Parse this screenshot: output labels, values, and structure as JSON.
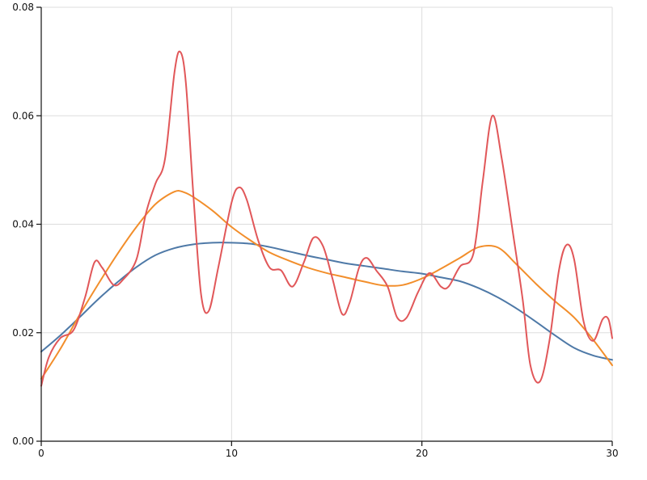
{
  "chart_data": {
    "type": "line",
    "title": "",
    "xlabel": "",
    "ylabel": "",
    "xlim": [
      0,
      30
    ],
    "ylim": [
      0,
      0.08
    ],
    "grid": true,
    "x_ticks": [
      {
        "value": 0,
        "label": "0"
      },
      {
        "value": 10,
        "label": "10"
      },
      {
        "value": 20,
        "label": "20"
      },
      {
        "value": 30,
        "label": "30"
      }
    ],
    "y_ticks": [
      {
        "value": 0,
        "label": "0.00"
      },
      {
        "value": 0.02,
        "label": "0.02"
      },
      {
        "value": 0.04,
        "label": "0.04"
      },
      {
        "value": 0.06,
        "label": "0.06"
      },
      {
        "value": 0.08,
        "label": "0.08"
      }
    ],
    "series": [
      {
        "color": "#4e79a7",
        "points": [
          [
            0,
            0.0165
          ],
          [
            1,
            0.0195
          ],
          [
            2,
            0.0228
          ],
          [
            3,
            0.0262
          ],
          [
            4,
            0.0293
          ],
          [
            5,
            0.0321
          ],
          [
            6,
            0.0343
          ],
          [
            7,
            0.0356
          ],
          [
            8,
            0.0363
          ],
          [
            9,
            0.0366
          ],
          [
            10,
            0.0366
          ],
          [
            11,
            0.0364
          ],
          [
            12,
            0.0358
          ],
          [
            13,
            0.035
          ],
          [
            14,
            0.0342
          ],
          [
            15,
            0.0335
          ],
          [
            16,
            0.0328
          ],
          [
            17,
            0.0323
          ],
          [
            18,
            0.0318
          ],
          [
            19,
            0.0313
          ],
          [
            20,
            0.0309
          ],
          [
            21,
            0.0302
          ],
          [
            22,
            0.0295
          ],
          [
            23,
            0.0282
          ],
          [
            24,
            0.0265
          ],
          [
            25,
            0.0244
          ],
          [
            26,
            0.022
          ],
          [
            27,
            0.0195
          ],
          [
            28,
            0.0172
          ],
          [
            29,
            0.0158
          ],
          [
            30,
            0.015
          ]
        ]
      },
      {
        "color": "#f28e2b",
        "points": [
          [
            0,
            0.0115
          ],
          [
            1,
            0.017
          ],
          [
            2,
            0.0232
          ],
          [
            3,
            0.029
          ],
          [
            4,
            0.0345
          ],
          [
            5,
            0.0395
          ],
          [
            6,
            0.0437
          ],
          [
            7,
            0.046
          ],
          [
            7.5,
            0.0459
          ],
          [
            8,
            0.045
          ],
          [
            9,
            0.0425
          ],
          [
            10,
            0.0395
          ],
          [
            11,
            0.037
          ],
          [
            12,
            0.0348
          ],
          [
            13,
            0.0333
          ],
          [
            14,
            0.032
          ],
          [
            15,
            0.031
          ],
          [
            16,
            0.0302
          ],
          [
            17,
            0.0294
          ],
          [
            18,
            0.0287
          ],
          [
            19,
            0.0288
          ],
          [
            20,
            0.03
          ],
          [
            21,
            0.0318
          ],
          [
            22,
            0.0338
          ],
          [
            23,
            0.0358
          ],
          [
            24,
            0.0357
          ],
          [
            25,
            0.0325
          ],
          [
            26,
            0.029
          ],
          [
            27,
            0.0258
          ],
          [
            28,
            0.0228
          ],
          [
            29,
            0.0187
          ],
          [
            30,
            0.014
          ]
        ]
      },
      {
        "color": "#e15759",
        "points": [
          [
            0,
            0.0102
          ],
          [
            0.4,
            0.0155
          ],
          [
            1,
            0.019
          ],
          [
            1.7,
            0.0205
          ],
          [
            2.3,
            0.0265
          ],
          [
            2.8,
            0.033
          ],
          [
            3.2,
            0.032
          ],
          [
            3.8,
            0.0288
          ],
          [
            4.3,
            0.0298
          ],
          [
            5,
            0.0335
          ],
          [
            5.5,
            0.042
          ],
          [
            6,
            0.0475
          ],
          [
            6.5,
            0.052
          ],
          [
            7,
            0.068
          ],
          [
            7.3,
            0.0718
          ],
          [
            7.6,
            0.066
          ],
          [
            8,
            0.045
          ],
          [
            8.4,
            0.027
          ],
          [
            8.8,
            0.024
          ],
          [
            9.3,
            0.032
          ],
          [
            10,
            0.044
          ],
          [
            10.4,
            0.0468
          ],
          [
            10.8,
            0.0445
          ],
          [
            11.4,
            0.037
          ],
          [
            12,
            0.032
          ],
          [
            12.6,
            0.0315
          ],
          [
            13.2,
            0.0285
          ],
          [
            13.8,
            0.033
          ],
          [
            14.3,
            0.0375
          ],
          [
            14.8,
            0.036
          ],
          [
            15.3,
            0.03
          ],
          [
            15.8,
            0.0235
          ],
          [
            16.2,
            0.0255
          ],
          [
            16.7,
            0.032
          ],
          [
            17.1,
            0.0338
          ],
          [
            17.6,
            0.0315
          ],
          [
            18.2,
            0.0285
          ],
          [
            18.7,
            0.0228
          ],
          [
            19.2,
            0.0228
          ],
          [
            19.8,
            0.0275
          ],
          [
            20.4,
            0.031
          ],
          [
            21,
            0.0285
          ],
          [
            21.4,
            0.0285
          ],
          [
            22,
            0.0322
          ],
          [
            22.7,
            0.0345
          ],
          [
            23.2,
            0.048
          ],
          [
            23.7,
            0.06
          ],
          [
            24.2,
            0.052
          ],
          [
            24.8,
            0.038
          ],
          [
            25.3,
            0.026
          ],
          [
            25.7,
            0.014
          ],
          [
            26.2,
            0.011
          ],
          [
            26.7,
            0.0185
          ],
          [
            27.2,
            0.0315
          ],
          [
            27.6,
            0.0362
          ],
          [
            28,
            0.0335
          ],
          [
            28.5,
            0.022
          ],
          [
            29,
            0.0185
          ],
          [
            29.5,
            0.0225
          ],
          [
            29.8,
            0.0225
          ],
          [
            30,
            0.019
          ]
        ]
      }
    ]
  }
}
